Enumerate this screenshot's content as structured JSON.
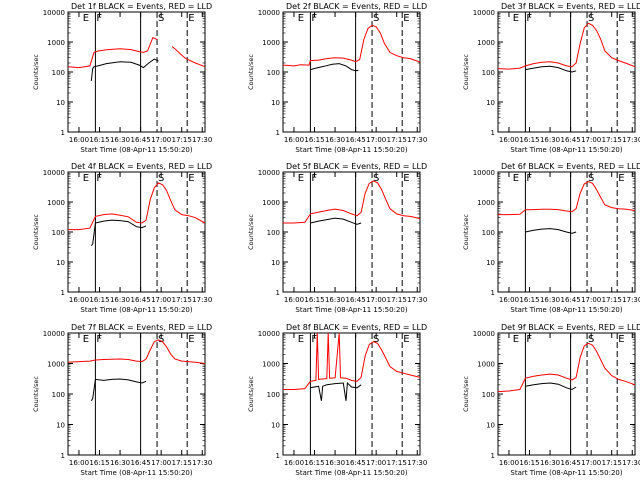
{
  "axes": {
    "xlabel": "Start Time (08-Apr-11 15:50:20)",
    "ylabel": "Counts/sec",
    "xticks": [
      "16:00",
      "16:15",
      "16:30",
      "16:45",
      "17:00",
      "17:15",
      "17:30"
    ],
    "yticks": [
      "1",
      "10",
      "100",
      "1000",
      "10000"
    ],
    "x_range_min": [
      -8,
      92
    ],
    "ylim": [
      1,
      10000
    ],
    "log_y": true
  },
  "colors": {
    "events": "#000000",
    "lld": "#ff0000",
    "axes": "#000000"
  },
  "panels": [
    {
      "title": "Det 1f BLACK = Events, RED = LLD",
      "letters": [
        [
          "E",
          2
        ],
        [
          "F",
          12
        ],
        [
          "S",
          57
        ],
        [
          "E",
          79
        ]
      ],
      "solid": [
        12,
        45
      ],
      "dashed": [
        57,
        79
      ],
      "events": [
        [
          9,
          50
        ],
        [
          10,
          130
        ],
        [
          11,
          150
        ],
        [
          14,
          160
        ],
        [
          20,
          190
        ],
        [
          30,
          220
        ],
        [
          38,
          210
        ],
        [
          44,
          170
        ],
        [
          47,
          140
        ],
        [
          51,
          200
        ],
        [
          55,
          270
        ],
        [
          58,
          230
        ]
      ],
      "lld": [
        [
          -8,
          150
        ],
        [
          0,
          140
        ],
        [
          8,
          160
        ],
        [
          11,
          450
        ],
        [
          14,
          500
        ],
        [
          20,
          550
        ],
        [
          30,
          600
        ],
        [
          38,
          560
        ],
        [
          44,
          480
        ],
        [
          47,
          450
        ],
        [
          50,
          500
        ],
        [
          54,
          1400
        ],
        [
          57,
          1200
        ]
      ],
      "lld_b": [
        [
          68,
          700
        ],
        [
          70,
          600
        ],
        [
          74,
          400
        ],
        [
          78,
          280
        ],
        [
          85,
          200
        ],
        [
          92,
          150
        ]
      ]
    },
    {
      "title": "Det 2f BLACK = Events, RED = LLD",
      "letters": [
        [
          "E",
          2
        ],
        [
          "F",
          12
        ],
        [
          "S",
          57
        ],
        [
          "E",
          79
        ]
      ],
      "solid": [
        12,
        45
      ],
      "dashed": [
        57,
        79
      ],
      "events": [
        [
          12,
          120
        ],
        [
          16,
          135
        ],
        [
          22,
          155
        ],
        [
          28,
          180
        ],
        [
          33,
          190
        ],
        [
          38,
          160
        ],
        [
          42,
          120
        ],
        [
          45,
          110
        ],
        [
          47,
          115
        ]
      ],
      "lld": [
        [
          -8,
          170
        ],
        [
          0,
          160
        ],
        [
          5,
          175
        ],
        [
          11,
          170
        ],
        [
          12,
          240
        ],
        [
          18,
          250
        ],
        [
          24,
          280
        ],
        [
          30,
          300
        ],
        [
          36,
          290
        ],
        [
          42,
          250
        ],
        [
          45,
          220
        ],
        [
          48,
          260
        ],
        [
          51,
          1200
        ],
        [
          54,
          2800
        ],
        [
          57,
          3600
        ],
        [
          60,
          3200
        ],
        [
          63,
          2000
        ],
        [
          66,
          900
        ],
        [
          70,
          450
        ],
        [
          75,
          350
        ],
        [
          80,
          300
        ],
        [
          85,
          280
        ],
        [
          90,
          230
        ],
        [
          92,
          210
        ]
      ]
    },
    {
      "title": "Det 3f BLACK = Events, RED = LLD",
      "letters": [
        [
          "E",
          2
        ],
        [
          "F",
          12
        ],
        [
          "S",
          57
        ],
        [
          "E",
          79
        ]
      ],
      "solid": [
        12,
        45
      ],
      "dashed": [
        57,
        79
      ],
      "events": [
        [
          12,
          120
        ],
        [
          18,
          135
        ],
        [
          24,
          150
        ],
        [
          30,
          155
        ],
        [
          36,
          140
        ],
        [
          42,
          110
        ],
        [
          46,
          100
        ],
        [
          49,
          110
        ]
      ],
      "lld": [
        [
          -8,
          130
        ],
        [
          0,
          125
        ],
        [
          8,
          135
        ],
        [
          12,
          160
        ],
        [
          18,
          190
        ],
        [
          24,
          210
        ],
        [
          30,
          220
        ],
        [
          36,
          200
        ],
        [
          42,
          160
        ],
        [
          46,
          150
        ],
        [
          49,
          200
        ],
        [
          52,
          900
        ],
        [
          55,
          3000
        ],
        [
          58,
          4200
        ],
        [
          61,
          3600
        ],
        [
          64,
          2400
        ],
        [
          67,
          1200
        ],
        [
          70,
          500
        ],
        [
          75,
          300
        ],
        [
          80,
          240
        ],
        [
          85,
          200
        ],
        [
          92,
          150
        ]
      ]
    },
    {
      "title": "Det 4f BLACK = Events, RED = LLD",
      "letters": [
        [
          "E",
          2
        ],
        [
          "F",
          12
        ],
        [
          "S",
          57
        ],
        [
          "E",
          79
        ]
      ],
      "solid": [
        12,
        45
      ],
      "dashed": [
        57,
        79
      ],
      "events": [
        [
          9,
          35
        ],
        [
          10,
          40
        ],
        [
          12,
          200
        ],
        [
          18,
          230
        ],
        [
          24,
          250
        ],
        [
          30,
          240
        ],
        [
          36,
          220
        ],
        [
          42,
          150
        ],
        [
          46,
          140
        ],
        [
          49,
          160
        ]
      ],
      "lld": [
        [
          -8,
          120
        ],
        [
          0,
          120
        ],
        [
          8,
          135
        ],
        [
          12,
          330
        ],
        [
          18,
          380
        ],
        [
          24,
          400
        ],
        [
          30,
          360
        ],
        [
          36,
          320
        ],
        [
          42,
          210
        ],
        [
          46,
          200
        ],
        [
          49,
          250
        ],
        [
          52,
          1200
        ],
        [
          55,
          3000
        ],
        [
          58,
          4300
        ],
        [
          61,
          3800
        ],
        [
          64,
          2400
        ],
        [
          67,
          1100
        ],
        [
          70,
          550
        ],
        [
          75,
          380
        ],
        [
          80,
          350
        ],
        [
          85,
          300
        ],
        [
          92,
          200
        ]
      ]
    },
    {
      "title": "Det 5f BLACK = Events, RED = LLD",
      "letters": [
        [
          "E",
          2
        ],
        [
          "F",
          12
        ],
        [
          "S",
          57
        ],
        [
          "E",
          79
        ]
      ],
      "solid": [
        12,
        45
      ],
      "dashed": [
        57,
        79
      ],
      "events": [
        [
          12,
          200
        ],
        [
          18,
          230
        ],
        [
          24,
          260
        ],
        [
          30,
          290
        ],
        [
          36,
          270
        ],
        [
          42,
          210
        ],
        [
          46,
          180
        ],
        [
          49,
          200
        ]
      ],
      "lld": [
        [
          -8,
          200
        ],
        [
          0,
          200
        ],
        [
          8,
          210
        ],
        [
          12,
          400
        ],
        [
          18,
          460
        ],
        [
          24,
          520
        ],
        [
          30,
          580
        ],
        [
          36,
          520
        ],
        [
          42,
          400
        ],
        [
          46,
          350
        ],
        [
          49,
          450
        ],
        [
          52,
          2000
        ],
        [
          55,
          4200
        ],
        [
          58,
          5000
        ],
        [
          61,
          4400
        ],
        [
          64,
          2600
        ],
        [
          67,
          1200
        ],
        [
          70,
          600
        ],
        [
          75,
          400
        ],
        [
          80,
          350
        ],
        [
          85,
          330
        ],
        [
          92,
          280
        ]
      ]
    },
    {
      "title": "Det 6f BLACK = Events, RED = LLD",
      "letters": [
        [
          "E",
          2
        ],
        [
          "F",
          12
        ],
        [
          "S",
          57
        ],
        [
          "E",
          79
        ]
      ],
      "solid": [
        12,
        45
      ],
      "dashed": [
        57,
        79
      ],
      "events": [
        [
          12,
          100
        ],
        [
          18,
          115
        ],
        [
          24,
          125
        ],
        [
          30,
          130
        ],
        [
          36,
          120
        ],
        [
          42,
          100
        ],
        [
          46,
          90
        ],
        [
          49,
          100
        ]
      ],
      "lld": [
        [
          -8,
          380
        ],
        [
          0,
          380
        ],
        [
          8,
          390
        ],
        [
          12,
          550
        ],
        [
          18,
          560
        ],
        [
          24,
          570
        ],
        [
          30,
          575
        ],
        [
          36,
          560
        ],
        [
          42,
          500
        ],
        [
          46,
          480
        ],
        [
          49,
          600
        ],
        [
          52,
          2000
        ],
        [
          55,
          4000
        ],
        [
          58,
          4800
        ],
        [
          61,
          4200
        ],
        [
          64,
          2600
        ],
        [
          67,
          1400
        ],
        [
          70,
          800
        ],
        [
          75,
          650
        ],
        [
          80,
          600
        ],
        [
          85,
          580
        ],
        [
          92,
          520
        ]
      ]
    },
    {
      "title": "Det 7f BLACK = Events, RED = LLD",
      "letters": [
        [
          "E",
          2
        ],
        [
          "F",
          12
        ],
        [
          "S",
          57
        ],
        [
          "E",
          79
        ]
      ],
      "solid": [
        12,
        45
      ],
      "dashed": [
        57,
        79
      ],
      "events": [
        [
          9,
          60
        ],
        [
          10,
          70
        ],
        [
          12,
          300
        ],
        [
          18,
          280
        ],
        [
          24,
          300
        ],
        [
          30,
          310
        ],
        [
          36,
          290
        ],
        [
          42,
          250
        ],
        [
          46,
          230
        ],
        [
          49,
          260
        ]
      ],
      "lld": [
        [
          -8,
          1100
        ],
        [
          0,
          1150
        ],
        [
          8,
          1200
        ],
        [
          12,
          1300
        ],
        [
          18,
          1350
        ],
        [
          24,
          1380
        ],
        [
          30,
          1400
        ],
        [
          36,
          1350
        ],
        [
          42,
          1200
        ],
        [
          46,
          1150
        ],
        [
          49,
          1400
        ],
        [
          52,
          2800
        ],
        [
          55,
          5200
        ],
        [
          58,
          6000
        ],
        [
          61,
          5200
        ],
        [
          64,
          3500
        ],
        [
          67,
          2000
        ],
        [
          70,
          1400
        ],
        [
          75,
          1200
        ],
        [
          80,
          1150
        ],
        [
          85,
          1100
        ],
        [
          92,
          1000
        ]
      ]
    },
    {
      "title": "Det 8f BLACK = Events, RED = LLD",
      "letters": [
        [
          "E",
          2
        ],
        [
          "F",
          12
        ],
        [
          "S",
          57
        ],
        [
          "E",
          79
        ]
      ],
      "solid": [
        12,
        45
      ],
      "dashed": [
        57,
        79
      ],
      "events": [
        [
          12,
          160
        ],
        [
          18,
          180
        ],
        [
          20,
          60
        ],
        [
          21,
          180
        ],
        [
          24,
          200
        ],
        [
          30,
          220
        ],
        [
          36,
          230
        ],
        [
          38,
          60
        ],
        [
          39,
          230
        ],
        [
          42,
          170
        ],
        [
          46,
          160
        ],
        [
          49,
          200
        ]
      ],
      "lld": [
        [
          -8,
          140
        ],
        [
          0,
          140
        ],
        [
          8,
          150
        ],
        [
          12,
          260
        ],
        [
          16,
          280
        ],
        [
          17,
          10000
        ],
        [
          18,
          300
        ],
        [
          24,
          320
        ],
        [
          25,
          10000
        ],
        [
          26,
          330
        ],
        [
          30,
          340
        ],
        [
          33,
          10000
        ],
        [
          34,
          340
        ],
        [
          38,
          330
        ],
        [
          42,
          280
        ],
        [
          46,
          260
        ],
        [
          49,
          350
        ],
        [
          52,
          1800
        ],
        [
          55,
          4200
        ],
        [
          58,
          5200
        ],
        [
          61,
          4600
        ],
        [
          64,
          2800
        ],
        [
          67,
          1500
        ],
        [
          70,
          800
        ],
        [
          75,
          550
        ],
        [
          80,
          480
        ],
        [
          85,
          420
        ],
        [
          92,
          350
        ]
      ]
    },
    {
      "title": "Det 9f BLACK = Events, RED = LLD",
      "letters": [
        [
          "E",
          2
        ],
        [
          "F",
          12
        ],
        [
          "S",
          57
        ],
        [
          "E",
          79
        ]
      ],
      "solid": [
        12,
        45
      ],
      "dashed": [
        57,
        79
      ],
      "events": [
        [
          12,
          180
        ],
        [
          18,
          200
        ],
        [
          24,
          220
        ],
        [
          30,
          230
        ],
        [
          36,
          210
        ],
        [
          42,
          160
        ],
        [
          46,
          140
        ],
        [
          49,
          170
        ]
      ],
      "lld": [
        [
          -8,
          120
        ],
        [
          0,
          125
        ],
        [
          8,
          140
        ],
        [
          12,
          330
        ],
        [
          18,
          380
        ],
        [
          24,
          420
        ],
        [
          30,
          450
        ],
        [
          36,
          420
        ],
        [
          42,
          330
        ],
        [
          46,
          290
        ],
        [
          49,
          350
        ],
        [
          52,
          1600
        ],
        [
          55,
          3800
        ],
        [
          58,
          4600
        ],
        [
          61,
          4000
        ],
        [
          64,
          2500
        ],
        [
          67,
          1300
        ],
        [
          70,
          700
        ],
        [
          75,
          400
        ],
        [
          80,
          300
        ],
        [
          85,
          260
        ],
        [
          92,
          200
        ]
      ]
    }
  ]
}
